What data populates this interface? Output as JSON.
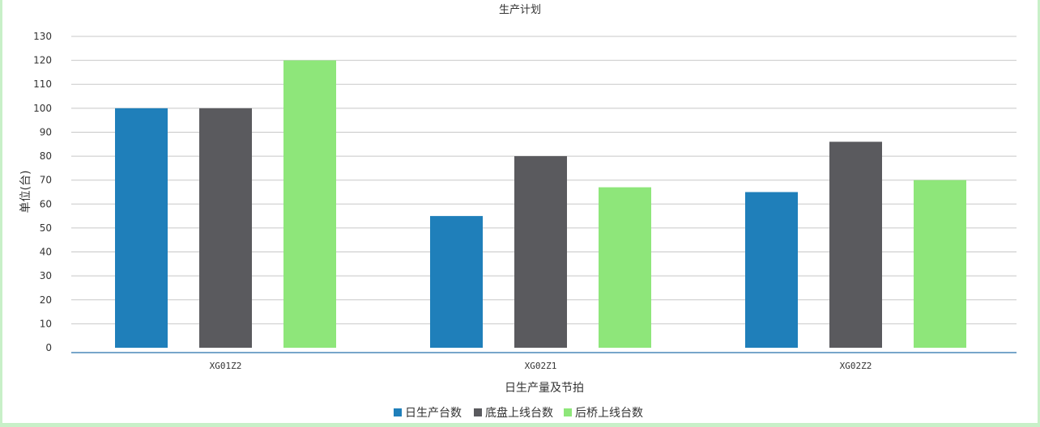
{
  "chart_data": {
    "type": "bar",
    "title": "生产计划",
    "xlabel": "日生产量及节拍",
    "ylabel": "单位(台)",
    "categories": [
      "XG01Z2",
      "XG02Z1",
      "XG02Z2"
    ],
    "series": [
      {
        "name": "日生产台数",
        "values": [
          100,
          55,
          65
        ],
        "color": "#1f7fba"
      },
      {
        "name": "底盘上线台数",
        "values": [
          100,
          80,
          86
        ],
        "color": "#5a5a5e"
      },
      {
        "name": "后桥上线台数",
        "values": [
          120,
          67,
          70
        ],
        "color": "#8ee67a"
      }
    ],
    "ylim": [
      0,
      130
    ],
    "yticks": [
      0,
      10,
      20,
      30,
      40,
      50,
      60,
      70,
      80,
      90,
      100,
      110,
      120,
      130
    ],
    "grid": true,
    "legend": "bottom-center",
    "colors": {
      "grid": "#c8c8c8",
      "baseline": "#4a88b8",
      "frame": "#c8f0c8"
    }
  }
}
